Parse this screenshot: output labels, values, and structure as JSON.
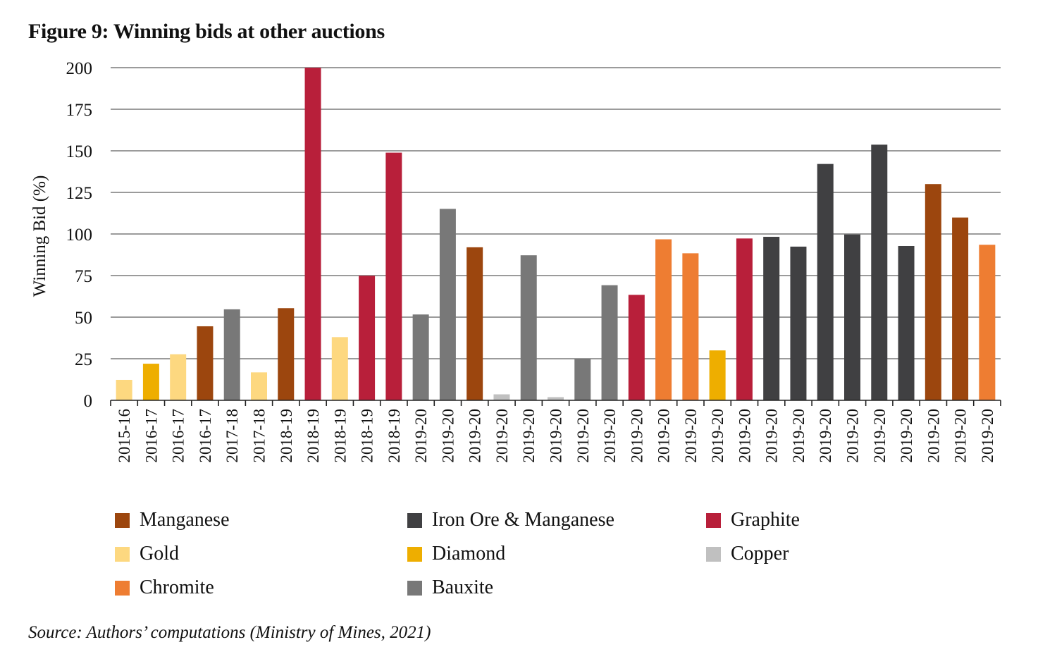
{
  "title": "Figure 9: Winning bids at other auctions",
  "source": "Source: Authors’ computations (Ministry of Mines, 2021)",
  "chart_data": {
    "type": "bar",
    "title": "Figure 9: Winning bids at other auctions",
    "xlabel": "",
    "ylabel": "Winning Bid (%)",
    "ylim": [
      0,
      200
    ],
    "yticks": [
      0,
      25,
      50,
      75,
      100,
      125,
      150,
      175,
      200
    ],
    "grid": true,
    "legend_position": "bottom",
    "colors": {
      "Manganese": "#9c460e",
      "Iron Ore & Manganese": "#404042",
      "Graphite": "#b81f3a",
      "Gold": "#fdd880",
      "Diamond": "#eeae00",
      "Copper": "#c0c0c0",
      "Chromite": "#ee7d32",
      "Bauxite": "#787878"
    },
    "legend": [
      "Manganese",
      "Iron Ore & Manganese",
      "Graphite",
      "Gold",
      "Diamond",
      "Copper",
      "Chromite",
      "Bauxite"
    ],
    "categories": [
      "2015-16",
      "2016-17",
      "2016-17",
      "2016-17",
      "2017-18",
      "2017-18",
      "2018-19",
      "2018-19",
      "2018-19",
      "2018-19",
      "2018-19",
      "2019-20",
      "2019-20",
      "2019-20",
      "2019-20",
      "2019-20",
      "2019-20",
      "2019-20",
      "2019-20",
      "2019-20",
      "2019-20",
      "2019-20",
      "2019-20",
      "2019-20",
      "2019-20",
      "2019-20",
      "2019-20",
      "2019-20",
      "2019-20",
      "2019-20",
      "2019-20",
      "2019-20",
      "2019-20"
    ],
    "mineral": [
      "Gold",
      "Diamond",
      "Gold",
      "Manganese",
      "Bauxite",
      "Gold",
      "Manganese",
      "Graphite",
      "Gold",
      "Graphite",
      "Graphite",
      "Bauxite",
      "Bauxite",
      "Manganese",
      "Copper",
      "Bauxite",
      "Copper",
      "Bauxite",
      "Bauxite",
      "Graphite",
      "Chromite",
      "Chromite",
      "Diamond",
      "Graphite",
      "Iron Ore & Manganese",
      "Iron Ore & Manganese",
      "Iron Ore & Manganese",
      "Iron Ore & Manganese",
      "Iron Ore & Manganese",
      "Iron Ore & Manganese",
      "Manganese",
      "Manganese",
      "Chromite"
    ],
    "values": [
      12.3,
      22.0,
      27.7,
      44.5,
      54.7,
      16.8,
      55.4,
      200,
      38.0,
      74.9,
      148.9,
      51.6,
      115.1,
      92.0,
      3.6,
      87.2,
      1.9,
      24.9,
      69.2,
      63.4,
      96.8,
      88.4,
      30.0,
      97.3,
      98.3,
      92.4,
      142.1,
      99.7,
      153.7,
      92.8,
      130.0,
      109.9,
      93.5
    ]
  }
}
